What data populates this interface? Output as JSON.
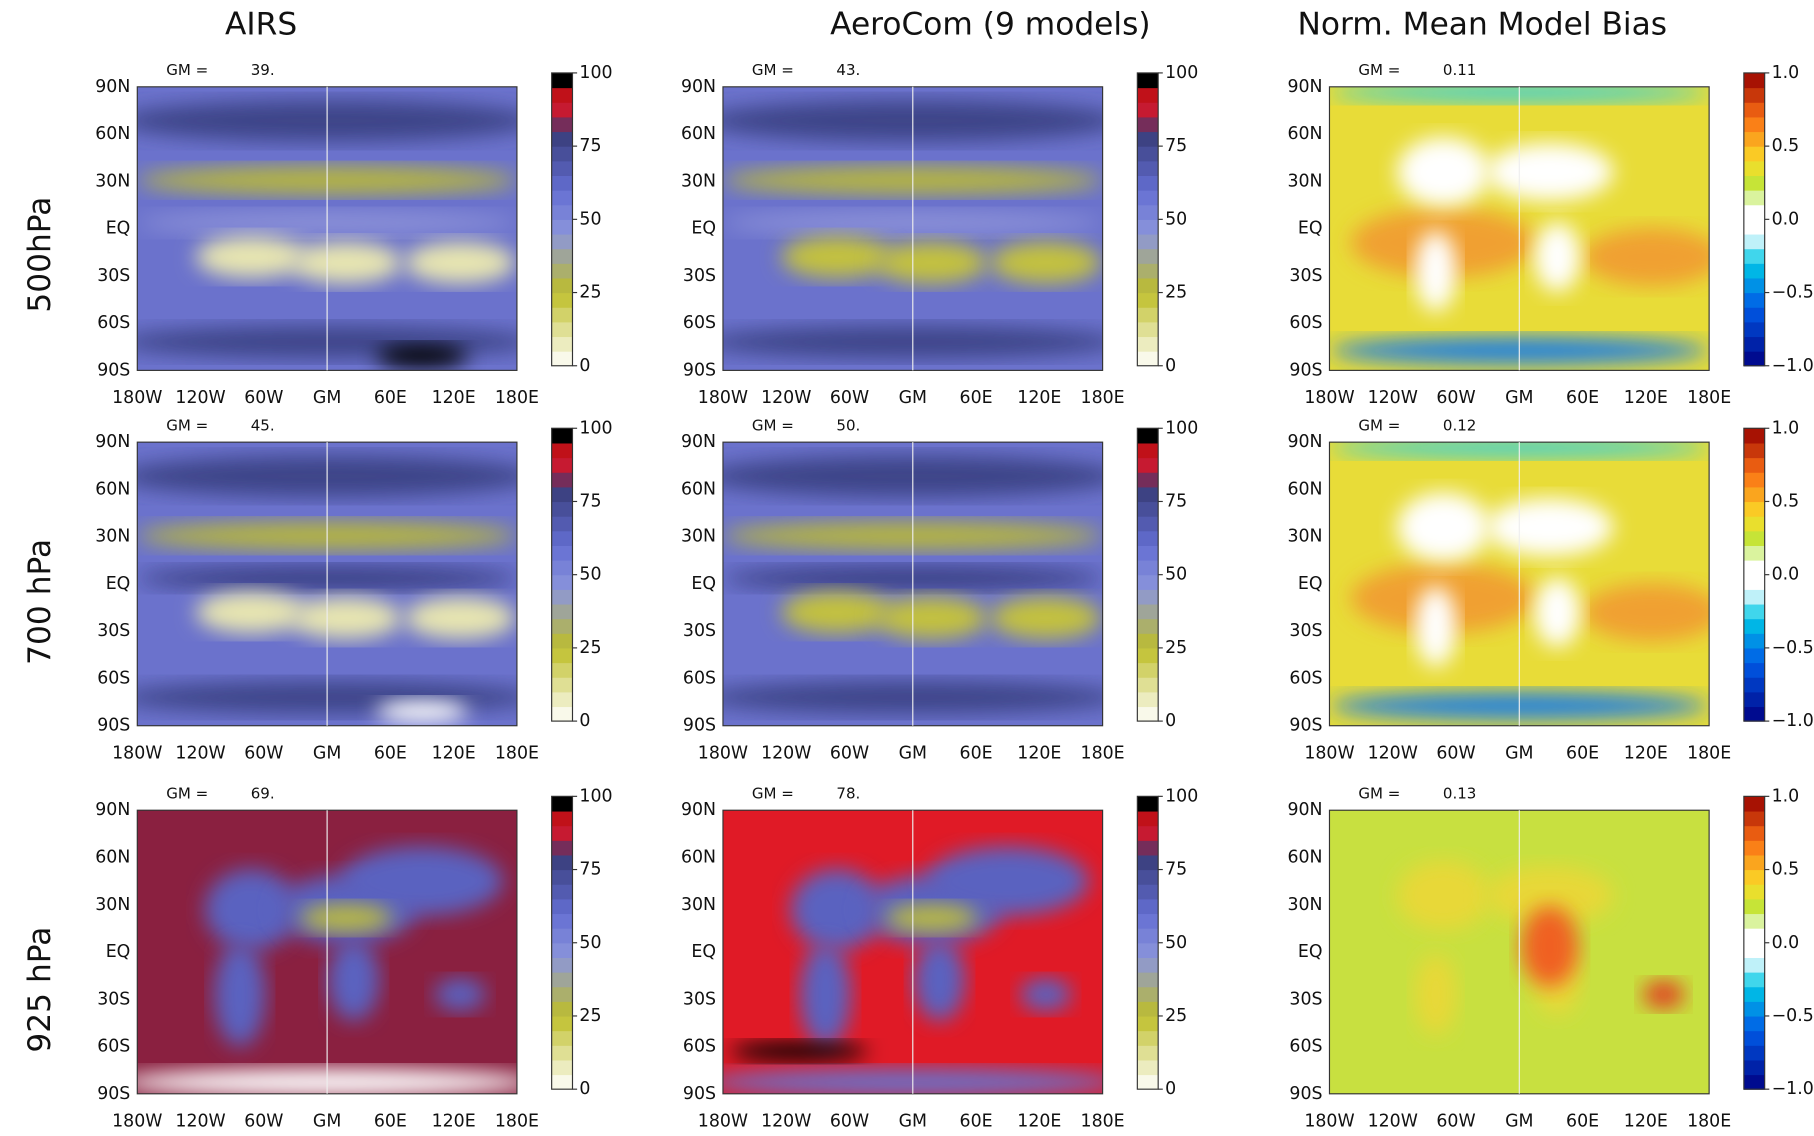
{
  "column_titles": [
    "AIRS",
    "AeroCom (9 models)",
    "Norm. Mean Model Bias"
  ],
  "row_labels": [
    "500hPa",
    "700 hPa",
    "925 hPa"
  ],
  "gm_label": "GM =",
  "lat_labels": [
    "90N",
    "60N",
    "30N",
    "EQ",
    "30S",
    "60S",
    "90S"
  ],
  "lon_labels": [
    "180W",
    "120W",
    "60W",
    "GM",
    "60E",
    "120E",
    "180E"
  ],
  "panels": [
    [
      "39.",
      "43.",
      "0.11"
    ],
    [
      "45.",
      "50.",
      "0.12"
    ],
    [
      "69.",
      "78.",
      "0.13"
    ]
  ],
  "colorbars": {
    "rh": [
      100,
      75,
      50,
      25,
      0
    ],
    "bias": [
      {
        "value": 1,
        "label": "1.0"
      },
      {
        "value": 0.5,
        "label": "0.5"
      },
      {
        "value": 0,
        "label": "0.0"
      },
      {
        "value": -0.5,
        "label": "−0.5"
      },
      {
        "value": -1,
        "label": "−1.0"
      }
    ]
  }
}
